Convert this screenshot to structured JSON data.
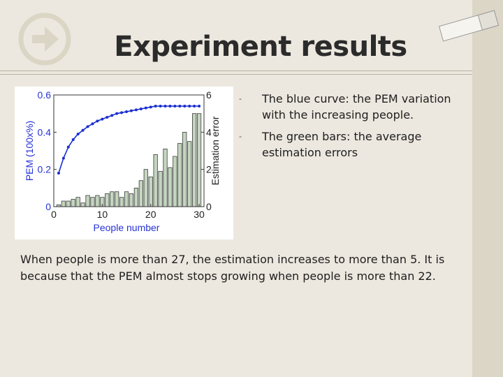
{
  "slide": {
    "title": "Experiment results",
    "bullets": [
      "The blue curve: the PEM variation with the increasing people.",
      "The green bars: the average estimation errors"
    ],
    "paragraph": "When people is more than 27, the estimation increases to more than 5. It is because that the PEM almost stops growing when people is more than 22."
  },
  "chart_data": {
    "type": "bar+line",
    "xlabel": "People number",
    "ylabel_left": "PEM (100x%)",
    "ylabel_right": "Estimation error",
    "xlim": [
      0,
      31
    ],
    "ylim_left": [
      0,
      0.6
    ],
    "ylim_right": [
      0,
      6
    ],
    "x_ticks": [
      "0",
      "10",
      "20",
      "30"
    ],
    "y_ticks_left": [
      "0",
      "0.2",
      "0.4",
      "0.6"
    ],
    "y_ticks_right": [
      "0",
      "2",
      "4",
      "6"
    ],
    "grid": false,
    "series": [
      {
        "kind": "bar",
        "axis": "right",
        "color": "#c5d6c0",
        "x": [
          1,
          2,
          3,
          4,
          5,
          6,
          7,
          8,
          9,
          10,
          11,
          12,
          13,
          14,
          15,
          16,
          17,
          18,
          19,
          20,
          21,
          22,
          23,
          24,
          25,
          26,
          27,
          28,
          29,
          30
        ],
        "values": [
          0.1,
          0.3,
          0.3,
          0.4,
          0.5,
          0.2,
          0.6,
          0.5,
          0.6,
          0.5,
          0.7,
          0.8,
          0.8,
          0.5,
          0.8,
          0.7,
          1.0,
          1.4,
          2.0,
          1.6,
          2.8,
          1.9,
          3.1,
          2.1,
          2.7,
          3.4,
          4.0,
          3.5,
          5.0,
          5.0
        ]
      },
      {
        "kind": "line",
        "axis": "left",
        "color": "#1a2fd1",
        "x": [
          1,
          2,
          3,
          4,
          5,
          6,
          7,
          8,
          9,
          10,
          11,
          12,
          13,
          14,
          15,
          16,
          17,
          18,
          19,
          20,
          21,
          22,
          23,
          24,
          25,
          26,
          27,
          28,
          29,
          30
        ],
        "values": [
          0.18,
          0.26,
          0.32,
          0.36,
          0.39,
          0.41,
          0.43,
          0.445,
          0.46,
          0.47,
          0.48,
          0.49,
          0.5,
          0.505,
          0.51,
          0.515,
          0.52,
          0.525,
          0.53,
          0.535,
          0.54,
          0.54,
          0.54,
          0.54,
          0.54,
          0.54,
          0.54,
          0.54,
          0.54,
          0.54
        ]
      }
    ]
  }
}
